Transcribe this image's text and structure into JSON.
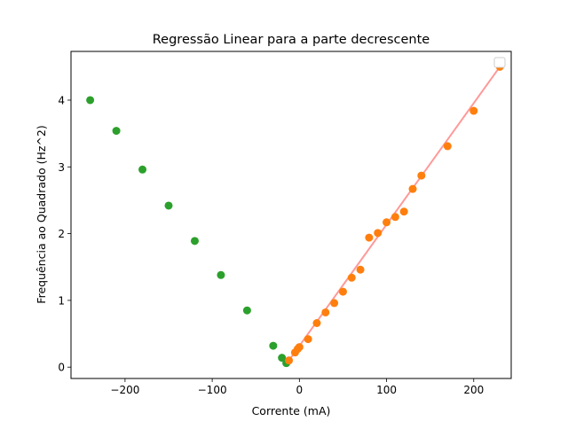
{
  "chart_data": {
    "type": "scatter",
    "title": "Regressão Linear para a parte decrescente",
    "xlabel": "Corrente (mA)",
    "ylabel": "Frequência ao Quadrado (Hz^2)",
    "xlim": [
      -262,
      243
    ],
    "ylim": [
      -0.17,
      4.73
    ],
    "xticks": [
      -200,
      -100,
      0,
      100,
      200
    ],
    "xtick_labels": [
      "−200",
      "−100",
      "0",
      "100",
      "200"
    ],
    "yticks": [
      0,
      1,
      2,
      3,
      4
    ],
    "ytick_labels": [
      "0",
      "1",
      "2",
      "3",
      "4"
    ],
    "grid": false,
    "legend": "top-right (empty)",
    "series": [
      {
        "color": "#2ca02c",
        "x": [
          -240,
          -210,
          -180,
          -150,
          -120,
          -90,
          -60,
          -30,
          -20,
          -15
        ],
        "y": [
          4.0,
          3.54,
          2.96,
          2.42,
          1.89,
          1.38,
          0.85,
          0.32,
          0.14,
          0.06
        ]
      },
      {
        "color": "#ff7f0e",
        "x": [
          -12,
          -5,
          -2,
          0,
          10,
          20,
          30,
          40,
          50,
          60,
          70,
          80,
          90,
          100,
          110,
          120,
          130,
          140,
          170,
          200,
          230
        ],
        "y": [
          0.1,
          0.22,
          0.27,
          0.3,
          0.42,
          0.66,
          0.82,
          0.96,
          1.13,
          1.34,
          1.46,
          1.94,
          2.01,
          2.17,
          2.25,
          2.33,
          2.67,
          2.87,
          3.31,
          3.84,
          4.5
        ]
      }
    ],
    "fit_line": {
      "color": "#ff9999",
      "x": [
        -12,
        230
      ],
      "y": [
        0.1,
        4.5
      ]
    }
  }
}
